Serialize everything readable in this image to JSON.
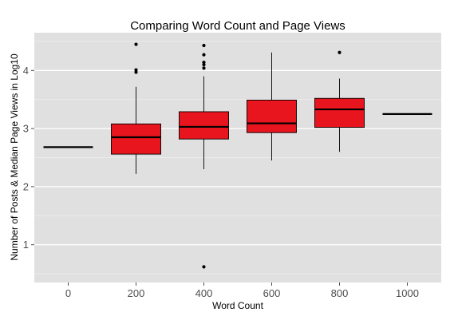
{
  "chart_data": {
    "type": "box",
    "title": "Comparing Word Count and Page Views",
    "xlabel": "Word Count",
    "ylabel": "Number of Posts & Median Page Views in Log10",
    "categories": [
      "0",
      "200",
      "400",
      "600",
      "800",
      "1000"
    ],
    "ylim": [
      0.35,
      4.65
    ],
    "yticks": [
      1,
      2,
      3,
      4
    ],
    "grid": true,
    "colors": {
      "panel": "#e0e0e0",
      "grid_major": "#ffffff",
      "grid_minor": "#ebebeb",
      "box_fill": "#e8141e",
      "line": "#000000"
    },
    "boxes": [
      {
        "category": "0",
        "min": 2.68,
        "q1": 2.68,
        "median": 2.68,
        "q3": 2.68,
        "max": 2.68,
        "outliers": []
      },
      {
        "category": "200",
        "min": 2.22,
        "q1": 2.56,
        "median": 2.85,
        "q3": 3.08,
        "max": 3.72,
        "outliers": [
          3.97,
          4.01,
          4.45
        ]
      },
      {
        "category": "400",
        "min": 2.3,
        "q1": 2.82,
        "median": 3.03,
        "q3": 3.29,
        "max": 3.9,
        "outliers": [
          0.62,
          4.04,
          4.1,
          4.14,
          4.27,
          4.43
        ]
      },
      {
        "category": "600",
        "min": 2.45,
        "q1": 2.93,
        "median": 3.09,
        "q3": 3.49,
        "max": 4.31,
        "outliers": []
      },
      {
        "category": "800",
        "min": 2.6,
        "q1": 3.02,
        "median": 3.33,
        "q3": 3.52,
        "max": 3.86,
        "outliers": [
          4.31
        ]
      },
      {
        "category": "1000",
        "min": 3.25,
        "q1": 3.25,
        "median": 3.25,
        "q3": 3.25,
        "max": 3.25,
        "outliers": []
      }
    ]
  }
}
